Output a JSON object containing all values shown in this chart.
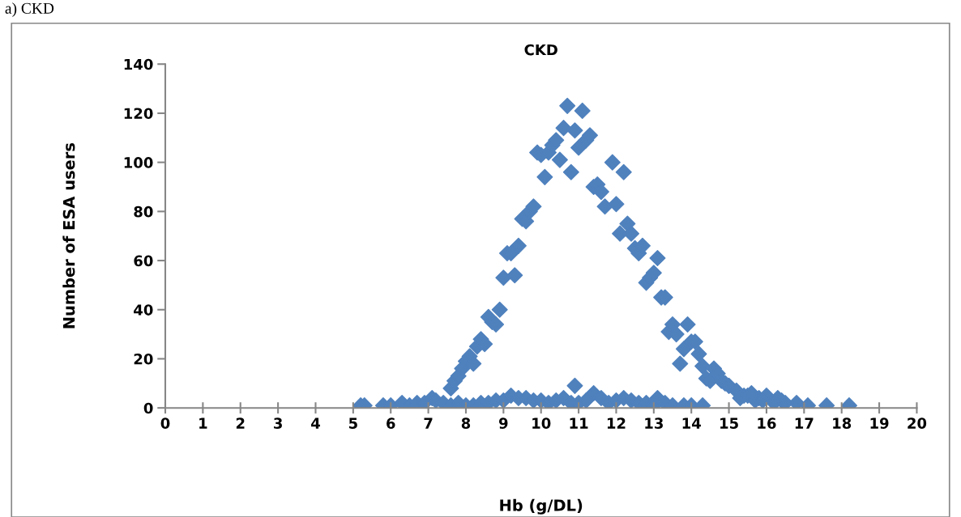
{
  "chart_data": {
    "type": "scatter",
    "title": "CKD",
    "xlabel": "Hb (g/DL)",
    "ylabel": "Number of ESA users",
    "annotations": [
      "a) CKD"
    ],
    "marker": "diamond",
    "grid": false,
    "legend": false,
    "xlim": [
      0,
      20
    ],
    "xticks": [
      0,
      1,
      2,
      3,
      4,
      5,
      6,
      7,
      8,
      9,
      10,
      11,
      12,
      13,
      14,
      15,
      16,
      17,
      18,
      19,
      20
    ],
    "ylim": [
      0,
      140
    ],
    "yticks": [
      0,
      20,
      40,
      60,
      80,
      100,
      120,
      140
    ],
    "series": [
      {
        "color": "#4f81bd",
        "x": [
          7.6,
          7.7,
          7.8,
          7.9,
          8.0,
          8.1,
          8.2,
          8.3,
          8.4,
          8.5,
          8.6,
          8.7,
          8.8,
          8.9,
          9.0,
          9.1,
          9.2,
          9.3,
          9.4,
          9.5,
          9.6,
          9.7,
          9.8,
          9.9,
          10.0,
          10.1,
          10.2,
          10.3,
          10.4,
          10.5,
          10.6,
          10.7,
          10.8,
          10.9,
          11.0,
          11.1,
          11.2,
          11.3,
          11.4,
          11.5,
          11.6,
          11.7,
          11.9,
          12.0,
          12.1,
          12.2,
          12.3,
          12.4,
          12.5,
          12.6,
          12.7,
          12.8,
          12.9,
          13.0,
          13.1,
          13.2,
          13.3,
          13.4,
          13.5,
          13.6,
          13.7,
          13.8,
          13.9,
          14.0,
          14.1,
          14.2,
          14.3,
          14.4,
          14.5,
          14.6,
          14.7,
          14.8,
          14.9,
          15.0,
          15.2,
          15.3,
          15.4,
          15.5,
          15.6,
          15.8,
          16.0,
          16.3,
          16.4,
          16.8,
          17.1,
          17.6,
          18.2,
          5.2,
          5.3,
          5.8,
          6.0,
          6.3,
          6.5,
          6.7,
          6.9,
          7.1,
          7.2,
          7.4,
          7.6,
          7.8,
          8.0,
          8.2,
          8.4,
          8.6,
          8.8,
          9.0,
          9.2,
          9.4,
          9.6,
          9.8,
          10.0,
          10.2,
          10.4,
          10.6,
          10.8,
          10.9,
          11.0,
          11.2,
          11.4,
          11.6,
          11.8,
          12.0,
          12.2,
          12.4,
          12.6,
          12.8,
          13.0,
          13.1,
          13.3,
          13.5,
          13.8,
          14.0,
          14.3,
          15.7,
          15.9,
          16.2,
          16.5
        ],
        "values": [
          8,
          11,
          13,
          16,
          19,
          21,
          18,
          25,
          28,
          26,
          37,
          35,
          34,
          40,
          53,
          63,
          63,
          54,
          66,
          77,
          76,
          80,
          82,
          104,
          103,
          94,
          104,
          107,
          109,
          101,
          114,
          123,
          96,
          113,
          106,
          121,
          109,
          111,
          90,
          91,
          88,
          82,
          100,
          83,
          71,
          96,
          75,
          71,
          65,
          63,
          66,
          51,
          53,
          55,
          61,
          45,
          45,
          31,
          34,
          30,
          18,
          24,
          34,
          27,
          27,
          22,
          17,
          12,
          11,
          16,
          14,
          11,
          10,
          9,
          7,
          4,
          5,
          5,
          6,
          4,
          5,
          4,
          3,
          2,
          1,
          1,
          1,
          1,
          1,
          1,
          1,
          2,
          1,
          2,
          2,
          4,
          3,
          2,
          1,
          2,
          1,
          1,
          2,
          2,
          3,
          3,
          5,
          4,
          4,
          3,
          3,
          2,
          3,
          4,
          2,
          9,
          2,
          3,
          6,
          4,
          2,
          3,
          4,
          3,
          2,
          2,
          1,
          4,
          2,
          1,
          1,
          1,
          1,
          3,
          3,
          2,
          2
        ]
      }
    ]
  }
}
